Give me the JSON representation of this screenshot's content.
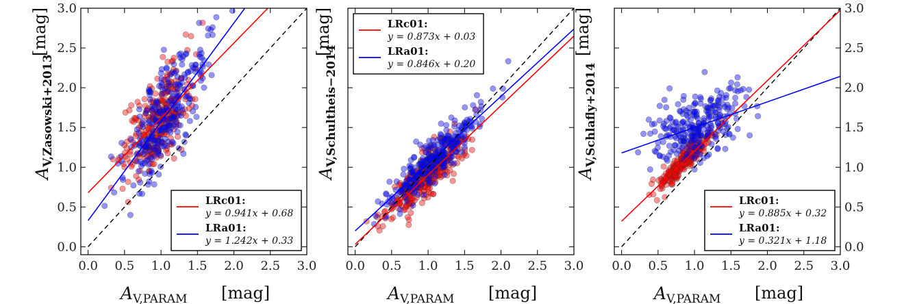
{
  "chart_data": [
    {
      "type": "scatter",
      "xlabel": "A",
      "xlabel_sub": "V,PARAM",
      "xunit": "[mag]",
      "ylabel": "A",
      "ylabel_sub": "V,Zasowski+2013",
      "yunit": "[mag]",
      "xlim": [
        -0.1,
        3.0
      ],
      "ylim": [
        -0.1,
        3.0
      ],
      "xticks": [
        "0.0",
        "0.5",
        "1.0",
        "1.5",
        "2.0",
        "2.5",
        "3.0"
      ],
      "yticks": [
        "0.0",
        "0.5",
        "1.0",
        "1.5",
        "2.0",
        "2.5",
        "3.0"
      ],
      "ytick_side": "left",
      "legend_position": "lower-right",
      "identity_line": true,
      "scatter_params": {
        "LRc01": {
          "xc": 0.95,
          "xs": 0.23,
          "slope": 0.941,
          "intercept": 0.68,
          "noise": 0.34,
          "n": 300
        },
        "LRa01": {
          "xc": 1.05,
          "xs": 0.3,
          "slope": 1.242,
          "intercept": 0.33,
          "noise": 0.36,
          "n": 280
        }
      },
      "series": [
        {
          "name": "LRc01",
          "color": "#ff0000",
          "equation": "y = 0.941x + 0.68",
          "slope": 0.941,
          "intercept": 0.68
        },
        {
          "name": "LRa01",
          "color": "#0000ff",
          "equation": "y = 1.242x + 0.33",
          "slope": 1.242,
          "intercept": 0.33
        }
      ]
    },
    {
      "type": "scatter",
      "xlabel": "A",
      "xlabel_sub": "V,PARAM",
      "xunit": "[mag]",
      "ylabel": "A",
      "ylabel_sub": "V,Schultheis−2014",
      "yunit": "[mag]",
      "xlim": [
        -0.1,
        3.0
      ],
      "ylim": [
        -0.1,
        3.0
      ],
      "xticks": [
        "0.0",
        "0.5",
        "1.0",
        "1.5",
        "2.0",
        "2.5",
        "3.0"
      ],
      "yticks": [],
      "ytick_side": "none",
      "legend_position": "upper-left",
      "identity_line": true,
      "scatter_params": {
        "LRc01": {
          "xc": 0.95,
          "xs": 0.25,
          "slope": 0.873,
          "intercept": 0.03,
          "noise": 0.17,
          "n": 320
        },
        "LRa01": {
          "xc": 1.05,
          "xs": 0.32,
          "slope": 0.846,
          "intercept": 0.2,
          "noise": 0.16,
          "n": 320
        }
      },
      "series": [
        {
          "name": "LRc01",
          "color": "#ff0000",
          "equation": "y = 0.873x + 0.03",
          "slope": 0.873,
          "intercept": 0.03
        },
        {
          "name": "LRa01",
          "color": "#0000ff",
          "equation": "y = 0.846x + 0.20",
          "slope": 0.846,
          "intercept": 0.2
        }
      ]
    },
    {
      "type": "scatter",
      "xlabel": "A",
      "xlabel_sub": "V,PARAM",
      "xunit": "[mag]",
      "ylabel": "A",
      "ylabel_sub": "V,Schlafly+2014",
      "yunit": "[mag]",
      "xlim": [
        -0.1,
        3.0
      ],
      "ylim": [
        -0.1,
        3.0
      ],
      "xticks": [
        "0.0",
        "0.5",
        "1.0",
        "1.5",
        "2.0",
        "2.5",
        "3.0"
      ],
      "yticks": [
        "0.0",
        "0.5",
        "1.0",
        "1.5",
        "2.0",
        "2.5",
        "3.0"
      ],
      "ytick_side": "right",
      "legend_position": "lower-right",
      "identity_line": true,
      "scatter_params": {
        "LRc01": {
          "xc": 0.85,
          "xs": 0.17,
          "slope": 0.885,
          "intercept": 0.32,
          "noise": 0.08,
          "n": 250
        },
        "LRa01": {
          "xc": 1.05,
          "xs": 0.33,
          "slope": 0.321,
          "intercept": 1.18,
          "noise": 0.27,
          "n": 280
        }
      },
      "series": [
        {
          "name": "LRc01",
          "color": "#ff0000",
          "equation": "y = 0.885x + 0.32",
          "slope": 0.885,
          "intercept": 0.32
        },
        {
          "name": "LRa01",
          "color": "#0000ff",
          "equation": "y = 0.321x + 1.18",
          "slope": 0.321,
          "intercept": 1.18
        }
      ]
    }
  ]
}
